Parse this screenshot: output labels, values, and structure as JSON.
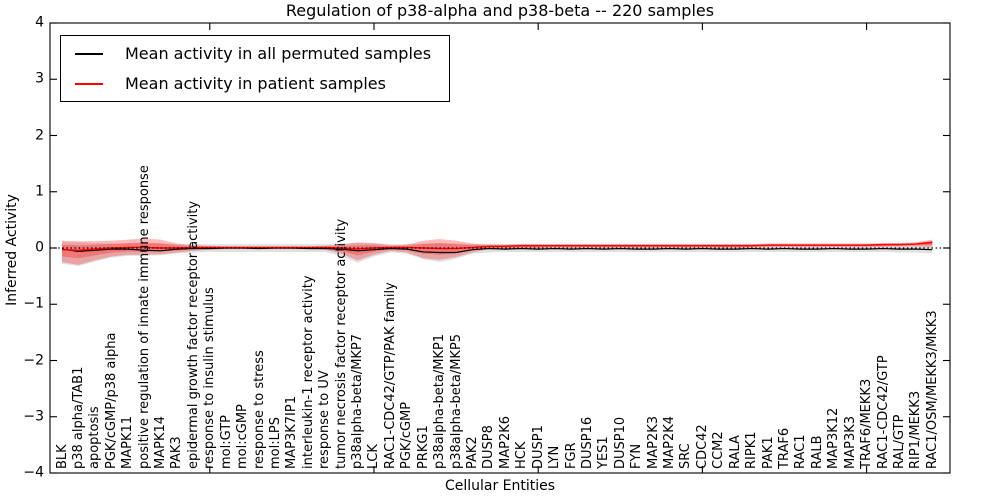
{
  "figure": {
    "title": "Regulation of p38-alpha and p38-beta -- 220 samples",
    "xlabel": "Cellular Entities",
    "ylabel": "Inferred Activity"
  },
  "legend": {
    "items": [
      {
        "label": "Mean activity in all permuted samples",
        "color": "#000000"
      },
      {
        "label": "Mean activity in patient samples",
        "color": "#ff0000"
      }
    ]
  },
  "chart_data": {
    "type": "line",
    "title": "Regulation of p38-alpha and p38-beta -- 220 samples",
    "xlabel": "Cellular Entities",
    "ylabel": "Inferred Activity",
    "ylim": [
      -4,
      4
    ],
    "yticks": [
      4,
      3,
      2,
      1,
      0,
      -1,
      -2,
      -3,
      -4
    ],
    "ytick_labels": [
      "4",
      "3",
      "2",
      "1",
      "0",
      "−1",
      "−2",
      "−3",
      "−4"
    ],
    "xtick_major_indices": [
      9,
      19,
      29,
      39,
      49
    ],
    "grid": false,
    "legend_position": "upper left",
    "zero_reference_line": {
      "value": 0,
      "style": "dotted",
      "color": "#000000"
    },
    "categories": [
      "BLK",
      "p38 alpha/TAB1",
      "apoptosis",
      "PGK/cGMP/p38 alpha",
      "MAPK11",
      "positive regulation of innate immune response",
      "MAPK14",
      "PAK3",
      "epidermal growth factor receptor activity",
      "response to insulin stimulus",
      "mol:GTP",
      "mol:cGMP",
      "response to stress",
      "mol:LPS",
      "MAP3K7IP1",
      "interleukin-1 receptor activity",
      "response to UV",
      "tumor necrosis factor receptor activity",
      "p38alpha-beta/MKP7",
      "LCK",
      "RAC1-CDC42/GTP/PAK family",
      "PGK/cGMP",
      "PRKG1",
      "p38alpha-beta/MKP1",
      "p38alpha-beta/MKP5",
      "PAK2",
      "DUSP8",
      "MAP2K6",
      "HCK",
      "DUSP1",
      "LYN",
      "FGR",
      "DUSP16",
      "YES1",
      "DUSP10",
      "FYN",
      "MAP2K3",
      "MAP2K4",
      "SRC",
      "CDC42",
      "CCM2",
      "RALA",
      "RIPK1",
      "PAK1",
      "TRAF6",
      "RAC1",
      "RALB",
      "MAP3K12",
      "MAP3K3",
      "TRAF6/MEKK3",
      "RAC1-CDC42/GTP",
      "RAL/GTP",
      "RIP1/MEKK3",
      "RAC1/OSM/MEKK3/MKK3"
    ],
    "series": [
      {
        "name": "Mean activity in all permuted samples",
        "color": "#000000",
        "style": "solid",
        "values": [
          -0.02,
          -0.06,
          -0.04,
          -0.02,
          -0.02,
          -0.04,
          -0.05,
          -0.02,
          -0.01,
          -0.01,
          0,
          0,
          -0.01,
          0,
          0,
          -0.01,
          -0.01,
          -0.02,
          -0.05,
          -0.03,
          -0.01,
          -0.02,
          -0.07,
          -0.08,
          -0.08,
          -0.03,
          -0.01,
          -0.02,
          -0.01,
          -0.02,
          -0.01,
          -0.02,
          -0.01,
          -0.02,
          -0.01,
          -0.02,
          -0.02,
          -0.01,
          -0.02,
          -0.01,
          -0.02,
          -0.02,
          -0.01,
          -0.02,
          -0.01,
          -0.02,
          -0.02,
          -0.01,
          -0.02,
          -0.02,
          -0.01,
          -0.02,
          -0.02,
          -0.03
        ]
      },
      {
        "name": "Mean activity in patient samples",
        "color": "#ff0000",
        "style": "solid",
        "values": [
          -0.03,
          -0.04,
          -0.02,
          0,
          0.01,
          0.01,
          0,
          0,
          0.01,
          0.01,
          0.01,
          0.01,
          0.01,
          0.01,
          0.01,
          0.01,
          0.01,
          0,
          -0.02,
          0,
          0.01,
          0.01,
          0,
          -0.01,
          -0.01,
          0.01,
          0.03,
          0.03,
          0.04,
          0.04,
          0.04,
          0.04,
          0.04,
          0.04,
          0.04,
          0.04,
          0.04,
          0.04,
          0.04,
          0.04,
          0.04,
          0.04,
          0.04,
          0.05,
          0.05,
          0.05,
          0.05,
          0.05,
          0.05,
          0.05,
          0.06,
          0.06,
          0.07,
          0.1
        ]
      }
    ],
    "bands": [
      {
        "name": "permuted-samples-std-band",
        "color": "rgba(0,0,0,0.12)",
        "upper": [
          0.1,
          0.1,
          0.09,
          0.08,
          0.08,
          0.08,
          0.08,
          0.07,
          0.07,
          0.07,
          0.07,
          0.07,
          0.07,
          0.07,
          0.07,
          0.07,
          0.07,
          0.08,
          0.09,
          0.08,
          0.07,
          0.07,
          0.08,
          0.09,
          0.08,
          0.07,
          0.07,
          0.07,
          0.07,
          0.07,
          0.07,
          0.07,
          0.07,
          0.07,
          0.07,
          0.07,
          0.07,
          0.07,
          0.07,
          0.07,
          0.07,
          0.07,
          0.07,
          0.07,
          0.07,
          0.07,
          0.07,
          0.07,
          0.07,
          0.07,
          0.07,
          0.08,
          0.08,
          0.1
        ],
        "lower": [
          -0.28,
          -0.32,
          -0.24,
          -0.17,
          -0.14,
          -0.14,
          -0.13,
          -0.1,
          -0.08,
          -0.07,
          -0.07,
          -0.07,
          -0.07,
          -0.07,
          -0.07,
          -0.07,
          -0.07,
          -0.14,
          -0.26,
          -0.15,
          -0.08,
          -0.1,
          -0.2,
          -0.25,
          -0.19,
          -0.1,
          -0.08,
          -0.07,
          -0.07,
          -0.07,
          -0.07,
          -0.07,
          -0.07,
          -0.07,
          -0.07,
          -0.07,
          -0.07,
          -0.07,
          -0.07,
          -0.07,
          -0.07,
          -0.07,
          -0.07,
          -0.07,
          -0.07,
          -0.07,
          -0.07,
          -0.07,
          -0.07,
          -0.07,
          -0.07,
          -0.08,
          -0.08,
          -0.1
        ]
      },
      {
        "name": "patient-samples-std-band",
        "color": "rgba(255,0,0,0.27)",
        "inner_band_scale": 0.55,
        "upper": [
          0.13,
          0.12,
          0.12,
          0.13,
          0.15,
          0.17,
          0.15,
          0.08,
          0.05,
          0.04,
          0.03,
          0.03,
          0.03,
          0.03,
          0.03,
          0.03,
          0.04,
          0.06,
          0.1,
          0.09,
          0.05,
          0.06,
          0.13,
          0.16,
          0.13,
          0.08,
          0.06,
          0.06,
          0.07,
          0.07,
          0.07,
          0.07,
          0.07,
          0.07,
          0.07,
          0.07,
          0.07,
          0.07,
          0.07,
          0.07,
          0.07,
          0.07,
          0.07,
          0.08,
          0.08,
          0.08,
          0.08,
          0.08,
          0.08,
          0.08,
          0.09,
          0.09,
          0.1,
          0.15
        ],
        "lower": [
          -0.25,
          -0.3,
          -0.22,
          -0.15,
          -0.12,
          -0.12,
          -0.11,
          -0.08,
          -0.05,
          -0.03,
          -0.02,
          -0.02,
          -0.02,
          -0.02,
          -0.02,
          -0.02,
          -0.03,
          -0.1,
          -0.22,
          -0.12,
          -0.05,
          -0.08,
          -0.18,
          -0.21,
          -0.16,
          -0.08,
          -0.02,
          -0.01,
          0,
          0,
          0.01,
          0.01,
          0.01,
          0.01,
          0.01,
          0.01,
          0.01,
          0.01,
          0.01,
          0.01,
          0.01,
          0.01,
          0.01,
          0.02,
          0.02,
          0.02,
          0.02,
          0.02,
          0.02,
          0.02,
          0.02,
          0.03,
          0.03,
          0.02
        ]
      }
    ]
  }
}
